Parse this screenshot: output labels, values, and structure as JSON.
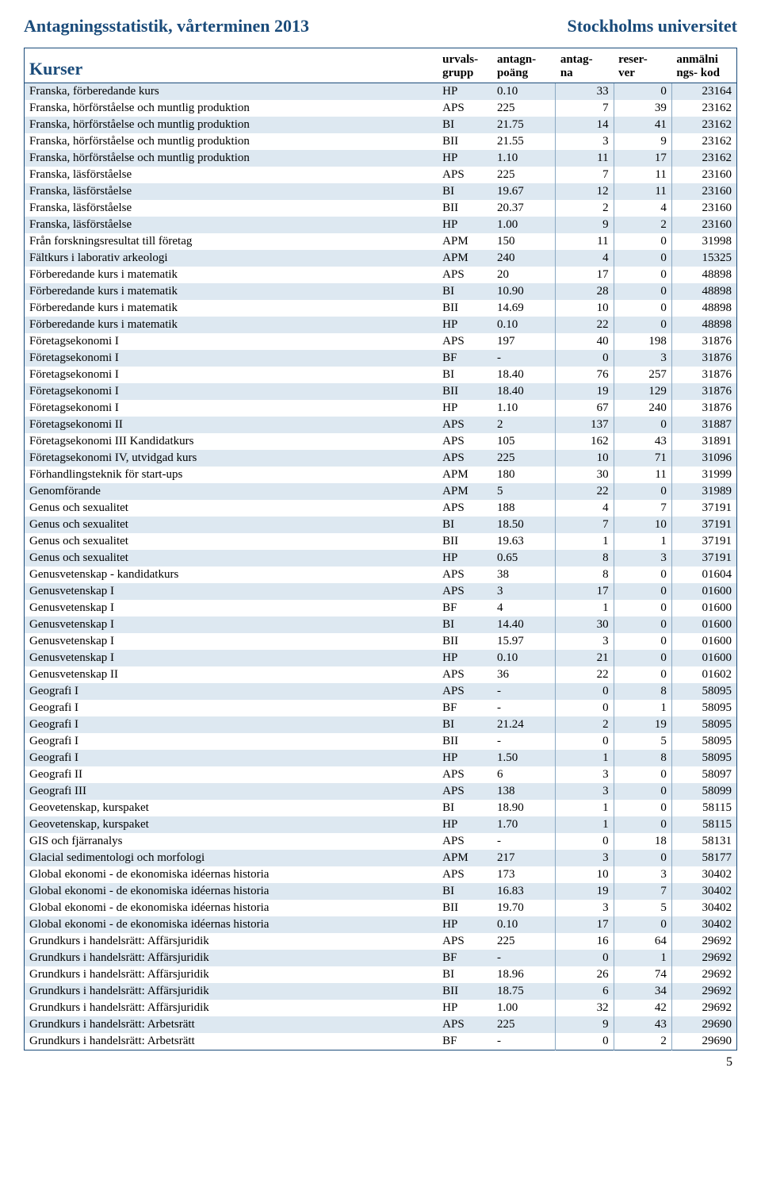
{
  "header": {
    "title_left": "Antagningsstatistik, vårterminen 2013",
    "title_right": "Stockholms universitet"
  },
  "table": {
    "head": {
      "kurser": "Kurser",
      "urvals1": "urvals-",
      "urvals2": "grupp",
      "antagn1": "antagn-",
      "antagn2": "poäng",
      "antag1": "antag-",
      "antag2": "na",
      "reser1": "reser-",
      "reser2": "ver",
      "kod1": "anmälni",
      "kod2": "ngs- kod"
    },
    "rows": [
      {
        "name": "Franska, förberedande kurs",
        "grupp": "HP",
        "poang": "0.10",
        "antag": "33",
        "reser": "0",
        "kod": "23164"
      },
      {
        "name": "Franska, hörförståelse och muntlig produktion",
        "grupp": "APS",
        "poang": "225",
        "antag": "7",
        "reser": "39",
        "kod": "23162"
      },
      {
        "name": "Franska, hörförståelse och muntlig produktion",
        "grupp": "BI",
        "poang": "21.75",
        "antag": "14",
        "reser": "41",
        "kod": "23162"
      },
      {
        "name": "Franska, hörförståelse och muntlig produktion",
        "grupp": "BII",
        "poang": "21.55",
        "antag": "3",
        "reser": "9",
        "kod": "23162"
      },
      {
        "name": "Franska, hörförståelse och muntlig produktion",
        "grupp": "HP",
        "poang": "1.10",
        "antag": "11",
        "reser": "17",
        "kod": "23162"
      },
      {
        "name": "Franska, läsförståelse",
        "grupp": "APS",
        "poang": "225",
        "antag": "7",
        "reser": "11",
        "kod": "23160"
      },
      {
        "name": "Franska, läsförståelse",
        "grupp": "BI",
        "poang": "19.67",
        "antag": "12",
        "reser": "11",
        "kod": "23160"
      },
      {
        "name": "Franska, läsförståelse",
        "grupp": "BII",
        "poang": "20.37",
        "antag": "2",
        "reser": "4",
        "kod": "23160"
      },
      {
        "name": "Franska, läsförståelse",
        "grupp": "HP",
        "poang": "1.00",
        "antag": "9",
        "reser": "2",
        "kod": "23160"
      },
      {
        "name": "Från forskningsresultat till företag",
        "grupp": "APM",
        "poang": "150",
        "antag": "11",
        "reser": "0",
        "kod": "31998"
      },
      {
        "name": "Fältkurs i laborativ arkeologi",
        "grupp": "APM",
        "poang": "240",
        "antag": "4",
        "reser": "0",
        "kod": "15325"
      },
      {
        "name": "Förberedande kurs i matematik",
        "grupp": "APS",
        "poang": "20",
        "antag": "17",
        "reser": "0",
        "kod": "48898"
      },
      {
        "name": "Förberedande kurs i matematik",
        "grupp": "BI",
        "poang": "10.90",
        "antag": "28",
        "reser": "0",
        "kod": "48898"
      },
      {
        "name": "Förberedande kurs i matematik",
        "grupp": "BII",
        "poang": "14.69",
        "antag": "10",
        "reser": "0",
        "kod": "48898"
      },
      {
        "name": "Förberedande kurs i matematik",
        "grupp": "HP",
        "poang": "0.10",
        "antag": "22",
        "reser": "0",
        "kod": "48898"
      },
      {
        "name": "Företagsekonomi I",
        "grupp": "APS",
        "poang": "197",
        "antag": "40",
        "reser": "198",
        "kod": "31876"
      },
      {
        "name": "Företagsekonomi I",
        "grupp": "BF",
        "poang": "-",
        "antag": "0",
        "reser": "3",
        "kod": "31876"
      },
      {
        "name": "Företagsekonomi I",
        "grupp": "BI",
        "poang": "18.40",
        "antag": "76",
        "reser": "257",
        "kod": "31876"
      },
      {
        "name": "Företagsekonomi I",
        "grupp": "BII",
        "poang": "18.40",
        "antag": "19",
        "reser": "129",
        "kod": "31876"
      },
      {
        "name": "Företagsekonomi I",
        "grupp": "HP",
        "poang": "1.10",
        "antag": "67",
        "reser": "240",
        "kod": "31876"
      },
      {
        "name": "Företagsekonomi II",
        "grupp": "APS",
        "poang": "2",
        "antag": "137",
        "reser": "0",
        "kod": "31887"
      },
      {
        "name": "Företagsekonomi III Kandidatkurs",
        "grupp": "APS",
        "poang": "105",
        "antag": "162",
        "reser": "43",
        "kod": "31891"
      },
      {
        "name": "Företagsekonomi IV, utvidgad kurs",
        "grupp": "APS",
        "poang": "225",
        "antag": "10",
        "reser": "71",
        "kod": "31096"
      },
      {
        "name": "Förhandlingsteknik för start-ups",
        "grupp": "APM",
        "poang": "180",
        "antag": "30",
        "reser": "11",
        "kod": "31999"
      },
      {
        "name": "Genomförande",
        "grupp": "APM",
        "poang": "5",
        "antag": "22",
        "reser": "0",
        "kod": "31989"
      },
      {
        "name": "Genus och sexualitet",
        "grupp": "APS",
        "poang": "188",
        "antag": "4",
        "reser": "7",
        "kod": "37191"
      },
      {
        "name": "Genus och sexualitet",
        "grupp": "BI",
        "poang": "18.50",
        "antag": "7",
        "reser": "10",
        "kod": "37191"
      },
      {
        "name": "Genus och sexualitet",
        "grupp": "BII",
        "poang": "19.63",
        "antag": "1",
        "reser": "1",
        "kod": "37191"
      },
      {
        "name": "Genus och sexualitet",
        "grupp": "HP",
        "poang": "0.65",
        "antag": "8",
        "reser": "3",
        "kod": "37191"
      },
      {
        "name": "Genusvetenskap - kandidatkurs",
        "grupp": "APS",
        "poang": "38",
        "antag": "8",
        "reser": "0",
        "kod": "01604"
      },
      {
        "name": "Genusvetenskap I",
        "grupp": "APS",
        "poang": "3",
        "antag": "17",
        "reser": "0",
        "kod": "01600"
      },
      {
        "name": "Genusvetenskap I",
        "grupp": "BF",
        "poang": "4",
        "antag": "1",
        "reser": "0",
        "kod": "01600"
      },
      {
        "name": "Genusvetenskap I",
        "grupp": "BI",
        "poang": "14.40",
        "antag": "30",
        "reser": "0",
        "kod": "01600"
      },
      {
        "name": "Genusvetenskap I",
        "grupp": "BII",
        "poang": "15.97",
        "antag": "3",
        "reser": "0",
        "kod": "01600"
      },
      {
        "name": "Genusvetenskap I",
        "grupp": "HP",
        "poang": "0.10",
        "antag": "21",
        "reser": "0",
        "kod": "01600"
      },
      {
        "name": "Genusvetenskap II",
        "grupp": "APS",
        "poang": "36",
        "antag": "22",
        "reser": "0",
        "kod": "01602"
      },
      {
        "name": "Geografi I",
        "grupp": "APS",
        "poang": "-",
        "antag": "0",
        "reser": "8",
        "kod": "58095"
      },
      {
        "name": "Geografi I",
        "grupp": "BF",
        "poang": "-",
        "antag": "0",
        "reser": "1",
        "kod": "58095"
      },
      {
        "name": "Geografi I",
        "grupp": "BI",
        "poang": "21.24",
        "antag": "2",
        "reser": "19",
        "kod": "58095"
      },
      {
        "name": "Geografi I",
        "grupp": "BII",
        "poang": "-",
        "antag": "0",
        "reser": "5",
        "kod": "58095"
      },
      {
        "name": "Geografi I",
        "grupp": "HP",
        "poang": "1.50",
        "antag": "1",
        "reser": "8",
        "kod": "58095"
      },
      {
        "name": "Geografi II",
        "grupp": "APS",
        "poang": "6",
        "antag": "3",
        "reser": "0",
        "kod": "58097"
      },
      {
        "name": "Geografi III",
        "grupp": "APS",
        "poang": "138",
        "antag": "3",
        "reser": "0",
        "kod": "58099"
      },
      {
        "name": "Geovetenskap, kurspaket",
        "grupp": "BI",
        "poang": "18.90",
        "antag": "1",
        "reser": "0",
        "kod": "58115"
      },
      {
        "name": "Geovetenskap, kurspaket",
        "grupp": "HP",
        "poang": "1.70",
        "antag": "1",
        "reser": "0",
        "kod": "58115"
      },
      {
        "name": "GIS och fjärranalys",
        "grupp": "APS",
        "poang": "-",
        "antag": "0",
        "reser": "18",
        "kod": "58131"
      },
      {
        "name": "Glacial sedimentologi och morfologi",
        "grupp": "APM",
        "poang": "217",
        "antag": "3",
        "reser": "0",
        "kod": "58177"
      },
      {
        "name": "Global ekonomi - de ekonomiska idéernas historia",
        "grupp": "APS",
        "poang": "173",
        "antag": "10",
        "reser": "3",
        "kod": "30402"
      },
      {
        "name": "Global ekonomi - de ekonomiska idéernas historia",
        "grupp": "BI",
        "poang": "16.83",
        "antag": "19",
        "reser": "7",
        "kod": "30402"
      },
      {
        "name": "Global ekonomi - de ekonomiska idéernas historia",
        "grupp": "BII",
        "poang": "19.70",
        "antag": "3",
        "reser": "5",
        "kod": "30402"
      },
      {
        "name": "Global ekonomi - de ekonomiska idéernas historia",
        "grupp": "HP",
        "poang": "0.10",
        "antag": "17",
        "reser": "0",
        "kod": "30402"
      },
      {
        "name": "Grundkurs i handelsrätt: Affärsjuridik",
        "grupp": "APS",
        "poang": "225",
        "antag": "16",
        "reser": "64",
        "kod": "29692"
      },
      {
        "name": "Grundkurs i handelsrätt: Affärsjuridik",
        "grupp": "BF",
        "poang": "-",
        "antag": "0",
        "reser": "1",
        "kod": "29692"
      },
      {
        "name": "Grundkurs i handelsrätt: Affärsjuridik",
        "grupp": "BI",
        "poang": "18.96",
        "antag": "26",
        "reser": "74",
        "kod": "29692"
      },
      {
        "name": "Grundkurs i handelsrätt: Affärsjuridik",
        "grupp": "BII",
        "poang": "18.75",
        "antag": "6",
        "reser": "34",
        "kod": "29692"
      },
      {
        "name": "Grundkurs i handelsrätt: Affärsjuridik",
        "grupp": "HP",
        "poang": "1.00",
        "antag": "32",
        "reser": "42",
        "kod": "29692"
      },
      {
        "name": "Grundkurs i handelsrätt: Arbetsrätt",
        "grupp": "APS",
        "poang": "225",
        "antag": "9",
        "reser": "43",
        "kod": "29690"
      },
      {
        "name": "Grundkurs i handelsrätt: Arbetsrätt",
        "grupp": "BF",
        "poang": "-",
        "antag": "0",
        "reser": "2",
        "kod": "29690"
      }
    ]
  },
  "footer": {
    "pagenum": "5"
  },
  "style": {
    "header_color": "#1a4b7a",
    "row_alt_bg": "#dde8f1",
    "vline_color": "#8aa8c2"
  }
}
